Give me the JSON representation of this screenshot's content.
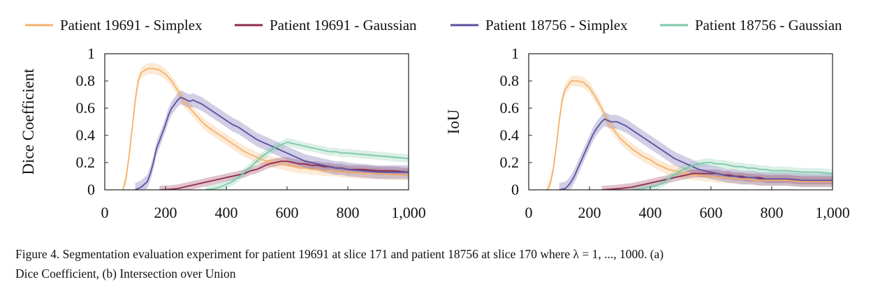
{
  "chart_data": [
    {
      "type": "line",
      "panel": "left",
      "ylabel": "Dice Coefficient",
      "xlabel": "",
      "xlim": [
        0,
        1000
      ],
      "ylim": [
        0,
        1
      ],
      "xticks": [
        "0",
        "200",
        "400",
        "600",
        "800",
        "1,000"
      ],
      "yticks": [
        "0",
        "0.2",
        "0.4",
        "0.6",
        "0.8",
        "1"
      ],
      "grid": false,
      "series": [
        {
          "name": "Patient 19691 - Simplex",
          "color": "#F5B26B",
          "x": [
            60,
            70,
            80,
            90,
            100,
            110,
            120,
            140,
            160,
            180,
            200,
            220,
            240,
            260,
            280,
            300,
            320,
            340,
            360,
            380,
            400,
            420,
            440,
            460,
            480,
            500,
            520,
            540,
            560,
            580,
            600,
            620,
            640,
            660,
            680,
            700,
            720,
            740,
            760,
            780,
            800,
            850,
            900,
            950,
            1000
          ],
          "y": [
            0,
            0.08,
            0.25,
            0.45,
            0.65,
            0.8,
            0.86,
            0.89,
            0.89,
            0.88,
            0.85,
            0.8,
            0.73,
            0.65,
            0.6,
            0.55,
            0.5,
            0.46,
            0.43,
            0.4,
            0.37,
            0.34,
            0.31,
            0.28,
            0.26,
            0.24,
            0.22,
            0.21,
            0.2,
            0.19,
            0.18,
            0.17,
            0.16,
            0.16,
            0.15,
            0.15,
            0.14,
            0.14,
            0.14,
            0.13,
            0.13,
            0.12,
            0.12,
            0.11,
            0.11
          ],
          "band": 0.04
        },
        {
          "name": "Patient 19691 - Gaussian",
          "color": "#8E2A4E",
          "x": [
            180,
            200,
            220,
            240,
            260,
            280,
            300,
            320,
            340,
            360,
            380,
            400,
            420,
            440,
            460,
            480,
            500,
            520,
            540,
            560,
            580,
            600,
            620,
            640,
            660,
            680,
            700,
            720,
            740,
            760,
            780,
            800,
            850,
            900,
            950,
            1000
          ],
          "y": [
            0,
            0.002,
            0.005,
            0.01,
            0.02,
            0.03,
            0.04,
            0.05,
            0.06,
            0.07,
            0.08,
            0.09,
            0.1,
            0.11,
            0.12,
            0.14,
            0.15,
            0.17,
            0.19,
            0.2,
            0.21,
            0.21,
            0.2,
            0.19,
            0.19,
            0.18,
            0.18,
            0.17,
            0.17,
            0.16,
            0.16,
            0.15,
            0.15,
            0.14,
            0.14,
            0.13
          ],
          "band": 0.03
        },
        {
          "name": "Patient 18756 - Simplex",
          "color": "#5A50A0",
          "x": [
            100,
            110,
            120,
            130,
            140,
            150,
            160,
            170,
            180,
            190,
            200,
            210,
            220,
            230,
            240,
            250,
            260,
            270,
            280,
            290,
            300,
            320,
            340,
            360,
            380,
            400,
            420,
            440,
            460,
            480,
            500,
            520,
            540,
            560,
            580,
            600,
            620,
            640,
            660,
            680,
            700,
            720,
            740,
            760,
            780,
            800,
            850,
            900,
            950,
            1000
          ],
          "y": [
            0,
            0.01,
            0.02,
            0.04,
            0.06,
            0.12,
            0.2,
            0.3,
            0.36,
            0.42,
            0.48,
            0.55,
            0.6,
            0.63,
            0.66,
            0.68,
            0.67,
            0.66,
            0.65,
            0.66,
            0.65,
            0.63,
            0.6,
            0.57,
            0.54,
            0.51,
            0.48,
            0.46,
            0.43,
            0.4,
            0.37,
            0.35,
            0.33,
            0.31,
            0.29,
            0.27,
            0.25,
            0.23,
            0.21,
            0.2,
            0.19,
            0.18,
            0.17,
            0.16,
            0.16,
            0.15,
            0.14,
            0.13,
            0.13,
            0.13
          ],
          "band": 0.05
        },
        {
          "name": "Patient 18756 - Gaussian",
          "color": "#7CC8A8",
          "x": [
            330,
            360,
            380,
            400,
            420,
            440,
            460,
            480,
            500,
            520,
            540,
            560,
            580,
            600,
            620,
            640,
            660,
            680,
            700,
            720,
            740,
            760,
            780,
            800,
            850,
            900,
            950,
            1000
          ],
          "y": [
            0,
            0.01,
            0.02,
            0.04,
            0.06,
            0.09,
            0.13,
            0.17,
            0.21,
            0.25,
            0.28,
            0.31,
            0.33,
            0.35,
            0.34,
            0.33,
            0.32,
            0.31,
            0.3,
            0.29,
            0.28,
            0.28,
            0.27,
            0.27,
            0.26,
            0.25,
            0.24,
            0.23
          ],
          "band": 0.03
        }
      ]
    },
    {
      "type": "line",
      "panel": "right",
      "ylabel": "IoU",
      "xlabel": "",
      "xlim": [
        0,
        1000
      ],
      "ylim": [
        0,
        1
      ],
      "xticks": [
        "0",
        "200",
        "400",
        "600",
        "800",
        "1,000"
      ],
      "yticks": [
        "0",
        "0.2",
        "0.4",
        "0.6",
        "0.8",
        "1"
      ],
      "grid": false,
      "series": [
        {
          "name": "Patient 19691 - Simplex",
          "color": "#F5B26B",
          "x": [
            60,
            70,
            80,
            90,
            100,
            110,
            120,
            140,
            160,
            180,
            200,
            220,
            240,
            260,
            280,
            300,
            320,
            340,
            360,
            380,
            400,
            420,
            440,
            460,
            480,
            500,
            520,
            540,
            560,
            580,
            600,
            620,
            640,
            660,
            680,
            700,
            720,
            740,
            760,
            780,
            800,
            850,
            900,
            950,
            1000
          ],
          "y": [
            0,
            0.04,
            0.14,
            0.3,
            0.5,
            0.66,
            0.74,
            0.8,
            0.8,
            0.79,
            0.75,
            0.68,
            0.6,
            0.5,
            0.44,
            0.38,
            0.34,
            0.3,
            0.27,
            0.24,
            0.22,
            0.19,
            0.17,
            0.15,
            0.14,
            0.13,
            0.12,
            0.11,
            0.11,
            0.1,
            0.1,
            0.09,
            0.09,
            0.09,
            0.08,
            0.08,
            0.08,
            0.07,
            0.07,
            0.07,
            0.07,
            0.07,
            0.06,
            0.06,
            0.06
          ],
          "band": 0.04
        },
        {
          "name": "Patient 19691 - Gaussian",
          "color": "#8E2A4E",
          "x": [
            240,
            260,
            280,
            300,
            320,
            340,
            360,
            380,
            400,
            420,
            440,
            460,
            480,
            500,
            520,
            540,
            560,
            580,
            600,
            620,
            640,
            660,
            680,
            700,
            720,
            740,
            760,
            780,
            800,
            850,
            900,
            950,
            1000
          ],
          "y": [
            0,
            0.003,
            0.006,
            0.01,
            0.015,
            0.02,
            0.03,
            0.04,
            0.05,
            0.06,
            0.07,
            0.08,
            0.09,
            0.1,
            0.11,
            0.12,
            0.12,
            0.12,
            0.12,
            0.12,
            0.11,
            0.11,
            0.1,
            0.1,
            0.09,
            0.09,
            0.09,
            0.08,
            0.08,
            0.08,
            0.07,
            0.07,
            0.07
          ],
          "band": 0.03
        },
        {
          "name": "Patient 18756 - Simplex",
          "color": "#5A50A0",
          "x": [
            100,
            110,
            120,
            130,
            140,
            150,
            160,
            170,
            180,
            190,
            200,
            210,
            220,
            230,
            240,
            250,
            260,
            270,
            280,
            290,
            300,
            320,
            340,
            360,
            380,
            400,
            420,
            440,
            460,
            480,
            500,
            520,
            540,
            560,
            580,
            600,
            620,
            640,
            660,
            680,
            700,
            720,
            740,
            760,
            780,
            800,
            850,
            900,
            950,
            1000
          ],
          "y": [
            0,
            0.005,
            0.01,
            0.03,
            0.06,
            0.1,
            0.15,
            0.2,
            0.25,
            0.3,
            0.35,
            0.4,
            0.44,
            0.47,
            0.5,
            0.52,
            0.51,
            0.5,
            0.5,
            0.5,
            0.49,
            0.47,
            0.44,
            0.41,
            0.38,
            0.35,
            0.32,
            0.29,
            0.26,
            0.23,
            0.21,
            0.19,
            0.17,
            0.15,
            0.14,
            0.13,
            0.12,
            0.11,
            0.1,
            0.1,
            0.09,
            0.09,
            0.09,
            0.08,
            0.08,
            0.08,
            0.08,
            0.07,
            0.07,
            0.07
          ],
          "band": 0.05
        },
        {
          "name": "Patient 18756 - Gaussian",
          "color": "#7CC8A8",
          "x": [
            340,
            380,
            400,
            420,
            440,
            460,
            480,
            500,
            520,
            540,
            560,
            580,
            600,
            620,
            640,
            660,
            680,
            700,
            720,
            740,
            760,
            780,
            800,
            850,
            900,
            950,
            1000
          ],
          "y": [
            0,
            0.01,
            0.02,
            0.03,
            0.05,
            0.08,
            0.11,
            0.14,
            0.16,
            0.18,
            0.19,
            0.2,
            0.2,
            0.19,
            0.19,
            0.18,
            0.17,
            0.17,
            0.16,
            0.16,
            0.15,
            0.15,
            0.14,
            0.14,
            0.13,
            0.13,
            0.12
          ],
          "band": 0.03
        }
      ]
    }
  ],
  "legend": {
    "placement": "top",
    "items": [
      {
        "label": "Patient 19691 - Simplex",
        "color": "#F5B26B"
      },
      {
        "label": "Patient 19691 - Gaussian",
        "color": "#8E2A4E"
      },
      {
        "label": "Patient 18756 - Simplex",
        "color": "#5A50A0"
      },
      {
        "label": "Patient 18756 - Gaussian",
        "color": "#7CC8A8"
      }
    ]
  },
  "caption": {
    "line1": "Figure 4.  Segmentation evaluation experiment for patient 19691 at slice 171 and patient 18756 at slice 170 where λ = 1, ..., 1000.  (a)",
    "line2": "Dice Coefficient, (b) Intersection over Union"
  }
}
